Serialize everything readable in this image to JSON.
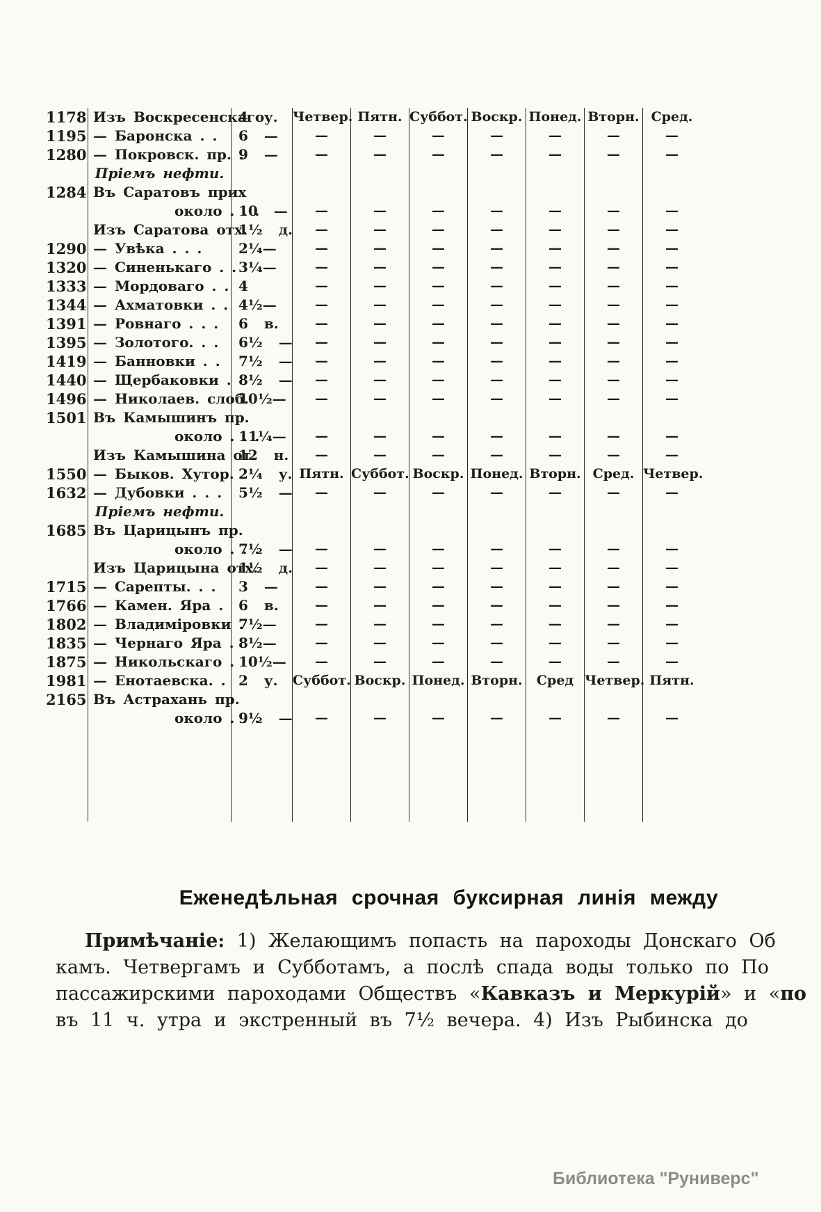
{
  "document": {
    "heading": "Еженедѣльная срочная буксирная линія между",
    "watermark": "Библиотека \"Руниверс\""
  },
  "table": {
    "rows": [
      {
        "verst": "1178",
        "station": "Изъ Воскресенскаго",
        "time": "4 у.",
        "style": "from",
        "days": [
          "Четвер.",
          "Пятн.",
          "Суббот.",
          "Воскр.",
          "Понед.",
          "Вторн.",
          "Сред."
        ]
      },
      {
        "verst": "1195",
        "station": "— Баронска . .",
        "time": "6 —",
        "style": "dash",
        "days": [
          "—",
          "—",
          "—",
          "—",
          "—",
          "—",
          "—"
        ]
      },
      {
        "verst": "1280",
        "station": "— Покровск. пр. .",
        "time": "9 —",
        "style": "dash",
        "days": [
          "—",
          "—",
          "—",
          "—",
          "—",
          "—",
          "—"
        ]
      },
      {
        "verst": "",
        "station": "Пріемъ нефти.",
        "time": "",
        "style": "italic",
        "days": [
          "",
          "",
          "",
          "",
          "",
          "",
          ""
        ]
      },
      {
        "verst": "1284",
        "station": "Въ Саратовъ прих",
        "time": "",
        "style": "from",
        "days": [
          "",
          "",
          "",
          "",
          "",
          "",
          ""
        ]
      },
      {
        "verst": "",
        "station": "около . . .",
        "time": "10 —",
        "style": "indent",
        "days": [
          "—",
          "—",
          "—",
          "—",
          "—",
          "—",
          "—"
        ]
      },
      {
        "verst": "",
        "station": "Изъ Саратова отх.",
        "time": "1½ д.",
        "style": "from",
        "days": [
          "—",
          "—",
          "—",
          "—",
          "—",
          "—",
          "—"
        ]
      },
      {
        "verst": "1290",
        "station": "— Увѣка . . .",
        "time": "2¼—",
        "style": "dash",
        "days": [
          "—",
          "—",
          "—",
          "—",
          "—",
          "—",
          "—"
        ]
      },
      {
        "verst": "1320",
        "station": "— Синенькаго . .",
        "time": "3¼—",
        "style": "dash",
        "days": [
          "—",
          "—",
          "—",
          "—",
          "—",
          "—",
          "—"
        ]
      },
      {
        "verst": "1333",
        "station": "— Мордоваго . .",
        "time": "4",
        "style": "dash",
        "days": [
          "—",
          "—",
          "—",
          "—",
          "—",
          "—",
          "—"
        ]
      },
      {
        "verst": "1344",
        "station": "— Ахматовки . .",
        "time": "4½—",
        "style": "dash",
        "days": [
          "—",
          "—",
          "—",
          "—",
          "—",
          "—",
          "—"
        ]
      },
      {
        "verst": "1391",
        "station": "— Ровнаго . . .",
        "time": "6 в.",
        "style": "dash",
        "days": [
          "—",
          "—",
          "—",
          "—",
          "—",
          "—",
          "—"
        ]
      },
      {
        "verst": "1395",
        "station": "— Золотого. . .",
        "time": "6½ —",
        "style": "dash",
        "days": [
          "—",
          "—",
          "—",
          "—",
          "—",
          "—",
          "—"
        ]
      },
      {
        "verst": "1419",
        "station": "— Банновки . .",
        "time": "7½ —",
        "style": "dash",
        "days": [
          "—",
          "—",
          "—",
          "—",
          "—",
          "—",
          "—"
        ]
      },
      {
        "verst": "1440",
        "station": "— Щербаковки .",
        "time": "8½ —",
        "style": "dash",
        "days": [
          "—",
          "—",
          "—",
          "—",
          "—",
          "—",
          "—"
        ]
      },
      {
        "verst": "1496",
        "station": "— Николаев. слоб.",
        "time": "10½—",
        "style": "dash",
        "days": [
          "—",
          "—",
          "—",
          "—",
          "—",
          "—",
          "—"
        ]
      },
      {
        "verst": "1501",
        "station": "Въ Камышинъ пр.",
        "time": "",
        "style": "from",
        "days": [
          "",
          "",
          "",
          "",
          "",
          "",
          ""
        ]
      },
      {
        "verst": "",
        "station": "около . . .",
        "time": "11¼—",
        "style": "indent",
        "days": [
          "—",
          "—",
          "—",
          "—",
          "—",
          "—",
          "—"
        ]
      },
      {
        "verst": "",
        "station": "Изъ Камышина от.",
        "time": "12 н.",
        "style": "from",
        "days": [
          "—",
          "—",
          "—",
          "—",
          "—",
          "—",
          "—"
        ]
      },
      {
        "verst": "1550",
        "station": "— Быков. Хутор.",
        "time": "2¼ у.",
        "style": "dash",
        "days": [
          "Пятн.",
          "Суббот.",
          "Воскр.",
          "Понед.",
          "Вторн.",
          "Сред.",
          "Четвер."
        ]
      },
      {
        "verst": "1632",
        "station": "— Дубовки . . .",
        "time": "5½ —",
        "style": "dash",
        "days": [
          "—",
          "—",
          "—",
          "—",
          "—",
          "—",
          "—"
        ]
      },
      {
        "verst": "",
        "station": "Пріемъ нефти.",
        "time": "",
        "style": "italic",
        "days": [
          "",
          "",
          "",
          "",
          "",
          "",
          ""
        ]
      },
      {
        "verst": "1685",
        "station": "Въ Царицынъ пр.",
        "time": "",
        "style": "from",
        "days": [
          "",
          "",
          "",
          "",
          "",
          "",
          ""
        ]
      },
      {
        "verst": "",
        "station": "около . . .",
        "time": "7½ —",
        "style": "indent",
        "days": [
          "—",
          "—",
          "—",
          "—",
          "—",
          "—",
          "—"
        ]
      },
      {
        "verst": "",
        "station": "Изъ Царицына отх.",
        "time": "1½ д.",
        "style": "from",
        "days": [
          "—",
          "—",
          "—",
          "—",
          "—",
          "—",
          "—"
        ]
      },
      {
        "verst": "1715",
        "station": "— Сарепты. . .",
        "time": "3 —",
        "style": "dash",
        "days": [
          "—",
          "—",
          "—",
          "—",
          "—",
          "—",
          "—"
        ]
      },
      {
        "verst": "1766",
        "station": "— Камен. Яра .",
        "time": "6 в.",
        "style": "dash",
        "days": [
          "—",
          "—",
          "—",
          "—",
          "—",
          "—",
          "—"
        ]
      },
      {
        "verst": "1802",
        "station": "— Владиміровки .",
        "time": "7½—",
        "style": "dash",
        "days": [
          "—",
          "—",
          "—",
          "—",
          "—",
          "—",
          "—"
        ]
      },
      {
        "verst": "1835",
        "station": "— Чернаго Яра .",
        "time": "8½—",
        "style": "dash",
        "days": [
          "—",
          "—",
          "—",
          "—",
          "—",
          "—",
          "—"
        ]
      },
      {
        "verst": "1875",
        "station": "— Никольскаго .",
        "time": "10½—",
        "style": "dash",
        "days": [
          "—",
          "—",
          "—",
          "—",
          "—",
          "—",
          "—"
        ]
      },
      {
        "verst": "1981",
        "station": "— Енотаевска. .",
        "time": "2 у.",
        "style": "dash",
        "days": [
          "Суббот.",
          "Воскр.",
          "Понед.",
          "Вторн.",
          "Сред",
          "Четвер.",
          "Пятн."
        ]
      },
      {
        "verst": "2165",
        "station": "Въ Астрахань пр.",
        "time": "",
        "style": "from",
        "days": [
          "",
          "",
          "",
          "",
          "",
          "",
          ""
        ]
      },
      {
        "verst": "",
        "station": "около . . .",
        "time": "9½ —",
        "style": "indent",
        "days": [
          "—",
          "—",
          "—",
          "—",
          "—",
          "—",
          "—"
        ]
      }
    ]
  },
  "note": {
    "lines": [
      [
        {
          "t": "Примѣчаніе:",
          "b": true
        },
        {
          "t": " 1) Желающимъ попасть на пароходы Донскаго Об",
          "b": false
        }
      ],
      [
        {
          "t": "камъ. Четвергамъ и Субботамъ, а послѣ спада воды только по По",
          "b": false
        }
      ],
      [
        {
          "t": "пассажирскими пароходами Обществъ «",
          "b": false
        },
        {
          "t": "Кавказъ и Меркурій",
          "b": true
        },
        {
          "t": "» и «",
          "b": false
        },
        {
          "t": "по",
          "b": true
        }
      ],
      [
        {
          "t": "въ 11 ч. утра и экстренный въ 7½ вечера. 4) Изъ Рыбинска до",
          "b": false
        }
      ]
    ]
  }
}
